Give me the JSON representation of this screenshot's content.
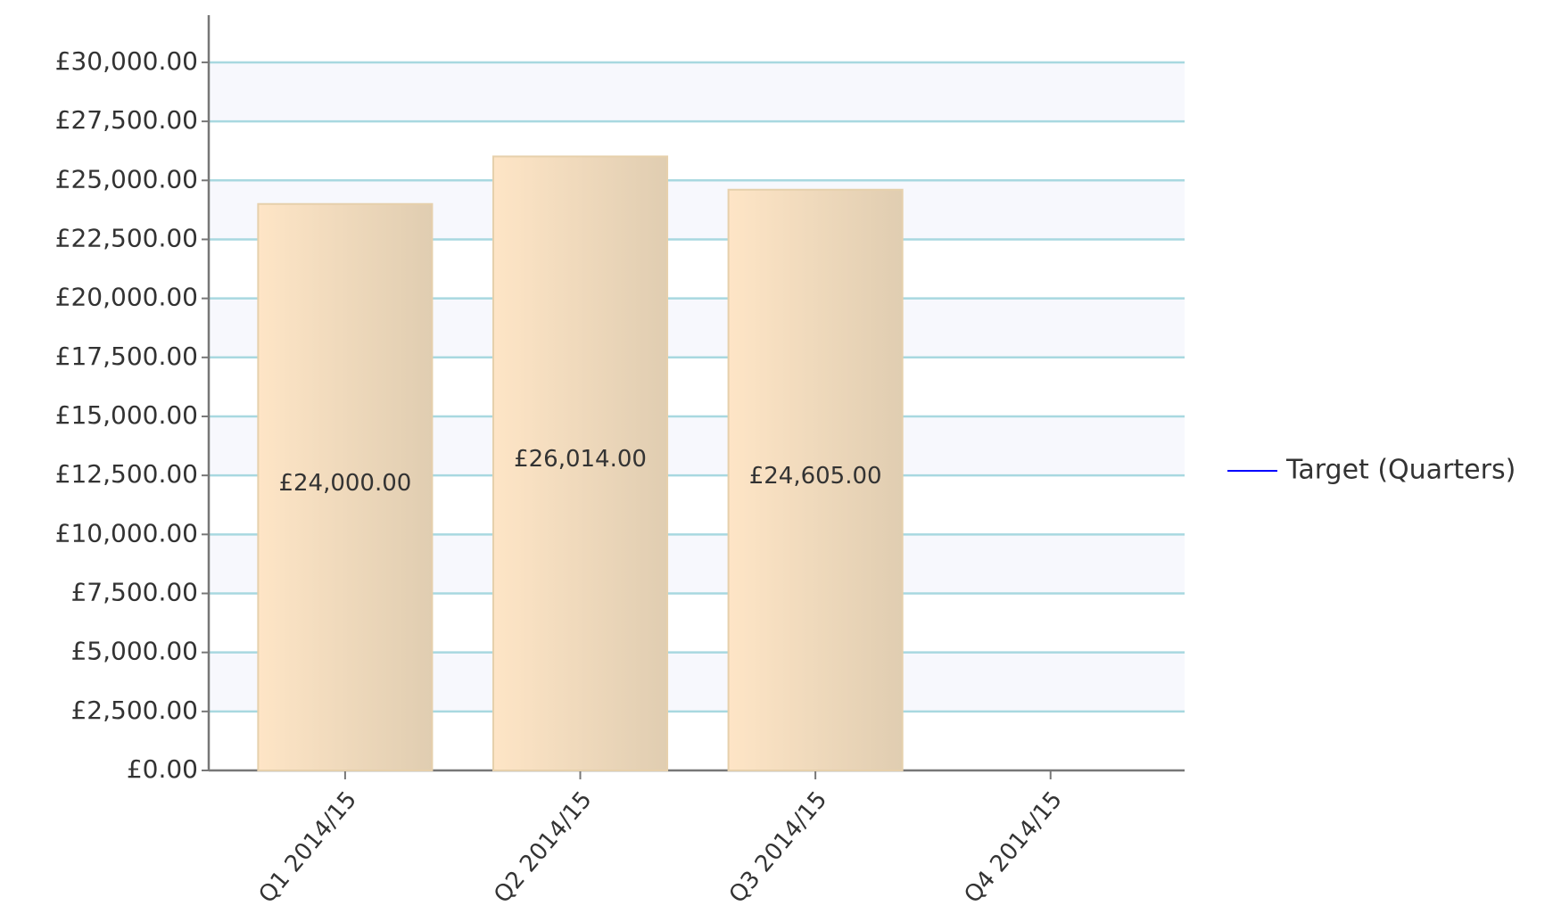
{
  "chart_data": {
    "type": "bar",
    "categories": [
      "Q1 2014/15",
      "Q2 2014/15",
      "Q3 2014/15",
      "Q4 2014/15"
    ],
    "values": [
      24000,
      26014,
      24605,
      null
    ],
    "value_labels": [
      "£24,000.00",
      "£26,014.00",
      "£24,605.00",
      null
    ],
    "color": "#f0d9bb",
    "series": [
      {
        "name": "Target (Quarters)",
        "type": "line",
        "color": "#0000ff",
        "values": [
          null,
          null,
          null,
          null
        ]
      }
    ],
    "ylim": [
      0,
      32000
    ],
    "yticks": [
      {
        "value": 0,
        "label": "£0.00"
      },
      {
        "value": 2500,
        "label": "£2,500.00"
      },
      {
        "value": 5000,
        "label": "£5,000.00"
      },
      {
        "value": 7500,
        "label": "£7,500.00"
      },
      {
        "value": 10000,
        "label": "£10,000.00"
      },
      {
        "value": 12500,
        "label": "£12,500.00"
      },
      {
        "value": 15000,
        "label": "£15,000.00"
      },
      {
        "value": 17500,
        "label": "£17,500.00"
      },
      {
        "value": 20000,
        "label": "£20,000.00"
      },
      {
        "value": 22500,
        "label": "£22,500.00"
      },
      {
        "value": 25000,
        "label": "£25,000.00"
      },
      {
        "value": 27500,
        "label": "£27,500.00"
      },
      {
        "value": 30000,
        "label": "£30,000.00"
      }
    ],
    "grid": true,
    "legend": "right"
  }
}
